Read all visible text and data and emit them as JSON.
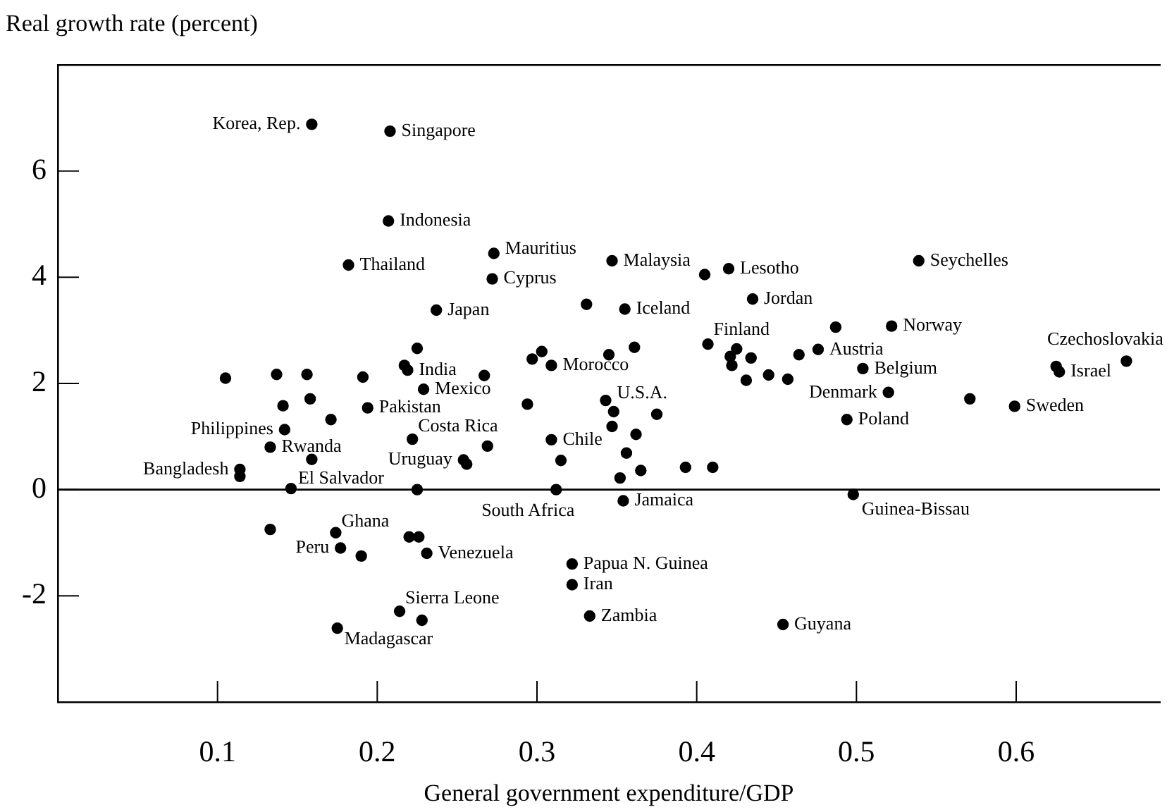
{
  "chart_data": {
    "type": "scatter",
    "ylabel": "Real growth rate (percent)",
    "xlabel": "General government expenditure/GDP",
    "color": "#000000",
    "marker": "circle",
    "grid": false,
    "xlim": [
      0,
      0.69
    ],
    "ylim": [
      -4,
      8
    ],
    "xticks": [
      0.1,
      0.2,
      0.3,
      0.4,
      0.5,
      0.6
    ],
    "yticks": [
      -2,
      0,
      2,
      4,
      6
    ],
    "ref_lines": [
      {
        "axis": "y",
        "value": 0
      }
    ],
    "x": [
      0.159,
      0.208,
      0.207,
      0.182,
      0.273,
      0.272,
      0.347,
      0.405,
      0.42,
      0.539,
      0.237,
      0.331,
      0.355,
      0.435,
      0.487,
      0.522,
      0.105,
      0.137,
      0.156,
      0.191,
      0.225,
      0.217,
      0.219,
      0.297,
      0.303,
      0.309,
      0.345,
      0.361,
      0.407,
      0.425,
      0.421,
      0.434,
      0.422,
      0.464,
      0.476,
      0.431,
      0.445,
      0.457,
      0.504,
      0.625,
      0.627,
      0.669,
      0.267,
      0.141,
      0.158,
      0.171,
      0.194,
      0.229,
      0.294,
      0.343,
      0.348,
      0.375,
      0.347,
      0.362,
      0.52,
      0.571,
      0.599,
      0.494,
      0.142,
      0.133,
      0.159,
      0.114,
      0.114,
      0.146,
      0.222,
      0.225,
      0.269,
      0.254,
      0.256,
      0.312,
      0.309,
      0.315,
      0.356,
      0.365,
      0.352,
      0.393,
      0.41,
      0.354,
      0.498,
      0.133,
      0.174,
      0.177,
      0.19,
      0.22,
      0.226,
      0.231,
      0.322,
      0.322,
      0.214,
      0.228,
      0.333,
      0.175,
      0.454
    ],
    "values": [
      6.88,
      6.75,
      5.06,
      4.23,
      4.45,
      3.97,
      4.31,
      4.05,
      4.16,
      4.31,
      3.38,
      3.49,
      3.4,
      3.59,
      3.06,
      3.08,
      2.1,
      2.17,
      2.17,
      2.12,
      2.66,
      2.34,
      2.25,
      2.46,
      2.6,
      2.34,
      2.54,
      2.68,
      2.74,
      2.65,
      2.51,
      2.48,
      2.34,
      2.54,
      2.64,
      2.06,
      2.16,
      2.08,
      2.28,
      2.32,
      2.22,
      2.42,
      2.15,
      1.58,
      1.71,
      1.32,
      1.54,
      1.89,
      1.61,
      1.68,
      1.47,
      1.42,
      1.19,
      1.04,
      1.83,
      1.71,
      1.57,
      1.32,
      1.13,
      0.8,
      0.57,
      0.38,
      0.25,
      0.02,
      0.95,
      0.0,
      0.82,
      0.56,
      0.48,
      0.0,
      0.94,
      0.55,
      0.69,
      0.36,
      0.22,
      0.42,
      0.42,
      -0.21,
      -0.09,
      -0.75,
      -0.81,
      -1.1,
      -1.25,
      -0.89,
      -0.89,
      -1.2,
      -1.4,
      -1.79,
      -2.29,
      -2.46,
      -2.38,
      -2.61,
      -2.54
    ],
    "annotations": [
      {
        "text": "Korea, Rep.",
        "x": 0.159,
        "y": 6.88
      },
      {
        "text": "Singapore",
        "x": 0.208,
        "y": 6.75
      },
      {
        "text": "Indonesia",
        "x": 0.207,
        "y": 5.06
      },
      {
        "text": "Thailand",
        "x": 0.182,
        "y": 4.23
      },
      {
        "text": "Mauritius",
        "x": 0.273,
        "y": 4.45
      },
      {
        "text": "Cyprus",
        "x": 0.272,
        "y": 3.97
      },
      {
        "text": "Malaysia",
        "x": 0.347,
        "y": 4.31
      },
      {
        "text": "Lesotho",
        "x": 0.42,
        "y": 4.16
      },
      {
        "text": "Seychelles",
        "x": 0.539,
        "y": 4.31
      },
      {
        "text": "Japan",
        "x": 0.237,
        "y": 3.38
      },
      {
        "text": "Iceland",
        "x": 0.355,
        "y": 3.4
      },
      {
        "text": "Jordan",
        "x": 0.435,
        "y": 3.59
      },
      {
        "text": "Finland",
        "x": 0.407,
        "y": 2.74
      },
      {
        "text": "Norway",
        "x": 0.522,
        "y": 3.08
      },
      {
        "text": "Austria",
        "x": 0.476,
        "y": 2.64
      },
      {
        "text": "Czechoslovakia",
        "x": 0.669,
        "y": 2.42
      },
      {
        "text": "India",
        "x": 0.219,
        "y": 2.25
      },
      {
        "text": "Morocco",
        "x": 0.309,
        "y": 2.34
      },
      {
        "text": "Belgium",
        "x": 0.504,
        "y": 2.28
      },
      {
        "text": "Israel",
        "x": 0.627,
        "y": 2.22
      },
      {
        "text": "Mexico",
        "x": 0.229,
        "y": 1.89
      },
      {
        "text": "Pakistan",
        "x": 0.194,
        "y": 1.54
      },
      {
        "text": "U.S.A.",
        "x": 0.343,
        "y": 1.68
      },
      {
        "text": "Denmark",
        "x": 0.52,
        "y": 1.83
      },
      {
        "text": "Sweden",
        "x": 0.599,
        "y": 1.57
      },
      {
        "text": "Philippines",
        "x": 0.142,
        "y": 1.13
      },
      {
        "text": "Costa Rica",
        "x": 0.222,
        "y": 0.95
      },
      {
        "text": "Chile",
        "x": 0.309,
        "y": 0.94
      },
      {
        "text": "Poland",
        "x": 0.494,
        "y": 1.32
      },
      {
        "text": "Rwanda",
        "x": 0.133,
        "y": 0.8
      },
      {
        "text": "Uruguay",
        "x": 0.254,
        "y": 0.56
      },
      {
        "text": "Bangladesh",
        "x": 0.114,
        "y": 0.38
      },
      {
        "text": "El Salvador",
        "x": 0.146,
        "y": 0.02
      },
      {
        "text": "South Africa",
        "x": 0.312,
        "y": 0.0
      },
      {
        "text": "Jamaica",
        "x": 0.354,
        "y": -0.21
      },
      {
        "text": "Guinea-Bissau",
        "x": 0.498,
        "y": -0.09
      },
      {
        "text": "Ghana",
        "x": 0.174,
        "y": -0.81
      },
      {
        "text": "Peru",
        "x": 0.177,
        "y": -1.1
      },
      {
        "text": "Venezuela",
        "x": 0.231,
        "y": -1.2
      },
      {
        "text": "Papua N. Guinea",
        "x": 0.322,
        "y": -1.4
      },
      {
        "text": "Iran",
        "x": 0.322,
        "y": -1.79
      },
      {
        "text": "Sierra Leone",
        "x": 0.214,
        "y": -2.29
      },
      {
        "text": "Zambia",
        "x": 0.333,
        "y": -2.38
      },
      {
        "text": "Madagascar",
        "x": 0.175,
        "y": -2.61
      },
      {
        "text": "Guyana",
        "x": 0.454,
        "y": -2.54
      }
    ]
  }
}
